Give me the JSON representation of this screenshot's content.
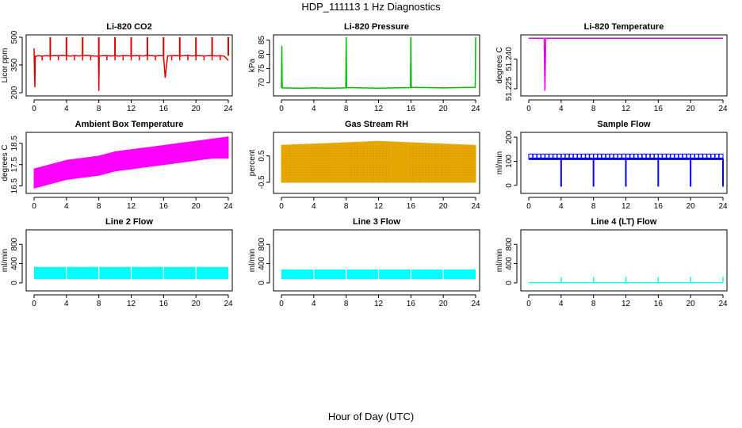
{
  "figure": {
    "title": "HDP_111113  1 Hz Diagnostics",
    "xlabel": "Hour of Day (UTC)"
  },
  "chart_data": [
    {
      "type": "line",
      "title": "Li-820 CO2",
      "ylabel": "Licor ppm",
      "color": "#dd0000",
      "xticks": [
        "0",
        "4",
        "8",
        "12",
        "16",
        "20",
        "24"
      ],
      "yticks": [
        "200",
        "350",
        "500"
      ],
      "xlim": [
        0,
        24
      ],
      "ylim": [
        200,
        500
      ],
      "x": [
        0,
        0.05,
        0.1,
        0.15,
        0.2,
        0.3,
        0.5,
        1.0,
        1.5,
        2.0,
        2.5,
        3.0,
        3.5,
        4.0,
        4.5,
        5.0,
        5.5,
        6.0,
        6.5,
        7.0,
        7.5,
        7.95,
        8.0,
        8.05,
        8.5,
        9.0,
        9.5,
        10.0,
        10.5,
        11.0,
        11.5,
        12.0,
        12.5,
        13.0,
        13.5,
        14.0,
        14.5,
        15.0,
        15.5,
        16.0,
        16.2,
        16.5,
        17.0,
        17.5,
        18.0,
        18.5,
        19.0,
        19.5,
        20.0,
        20.5,
        21.0,
        21.5,
        22.0,
        22.5,
        23.0,
        23.5,
        24.0
      ],
      "values": [
        440,
        300,
        230,
        400,
        395,
        398,
        400,
        398,
        400,
        399,
        401,
        400,
        402,
        400,
        398,
        401,
        399,
        400,
        402,
        400,
        398,
        399,
        210,
        399,
        400,
        401,
        399,
        400,
        398,
        401,
        400,
        399,
        401,
        400,
        399,
        402,
        400,
        399,
        401,
        400,
        280,
        399,
        400,
        401,
        399,
        400,
        402,
        399,
        401,
        400,
        399,
        400,
        401,
        399,
        400,
        398,
        375
      ],
      "spikes": {
        "x": [
          2.0,
          4.0,
          6.0,
          8.0,
          10.0,
          12.0,
          14.0,
          16.0,
          18.0,
          20.0,
          22.0,
          24.0
        ],
        "values": [
          500,
          500,
          500,
          500,
          500,
          500,
          500,
          500,
          500,
          500,
          500,
          500
        ]
      }
    },
    {
      "type": "line",
      "title": "Li-820 Pressure",
      "ylabel": "kPa",
      "color": "#00bb00",
      "xticks": [
        "0",
        "4",
        "8",
        "12",
        "16",
        "20",
        "24"
      ],
      "yticks": [
        "70",
        "75",
        "80",
        "85"
      ],
      "xlim": [
        0,
        24
      ],
      "ylim": [
        66.5,
        86
      ],
      "x": [
        0,
        0.05,
        0.1,
        0.2,
        2,
        4,
        6,
        7.95,
        8.0,
        8.05,
        10,
        12,
        14,
        15.95,
        16.0,
        16.05,
        18,
        20,
        22,
        23.95,
        24.0
      ],
      "values": [
        68.2,
        83,
        68.2,
        68.2,
        68.1,
        68.2,
        68.1,
        68.2,
        86,
        68.3,
        68.2,
        68.1,
        68.2,
        68.3,
        86,
        68.4,
        68.3,
        68.2,
        68.3,
        68.4,
        86
      ]
    },
    {
      "type": "line",
      "title": "Li-820 Temperature",
      "ylabel": "degrees C",
      "color": "#dd00dd",
      "xticks": [
        "0",
        "4",
        "8",
        "12",
        "16",
        "20",
        "24"
      ],
      "yticks": [
        "51.225",
        "51.240"
      ],
      "xlim": [
        0,
        24
      ],
      "ylim": [
        51.223,
        51.251
      ],
      "x": [
        0,
        1.9,
        2.0,
        2.1,
        24
      ],
      "values": [
        51.2505,
        51.2505,
        51.224,
        51.2505,
        51.2505
      ]
    },
    {
      "type": "area",
      "title": "Ambient Box Temperature",
      "ylabel": "degrees C",
      "color": "#ff00ff",
      "xticks": [
        "0",
        "4",
        "8",
        "12",
        "16",
        "20",
        "24"
      ],
      "yticks": [
        "16.5",
        "17.5",
        "18.5"
      ],
      "xlim": [
        0,
        24
      ],
      "ylim": [
        16.3,
        18.9
      ],
      "x": [
        0,
        2,
        4,
        6,
        8,
        10,
        12,
        14,
        16,
        18,
        20,
        22,
        24
      ],
      "low": [
        16.4,
        16.6,
        16.8,
        16.9,
        17.0,
        17.2,
        17.3,
        17.4,
        17.5,
        17.6,
        17.7,
        17.8,
        17.8
      ],
      "high": [
        17.3,
        17.5,
        17.7,
        17.8,
        17.9,
        18.1,
        18.2,
        18.3,
        18.4,
        18.5,
        18.6,
        18.7,
        18.8
      ]
    },
    {
      "type": "area",
      "title": "Gas Stream RH",
      "ylabel": "percent",
      "color": "#e6a800",
      "xticks": [
        "0",
        "4",
        "8",
        "12",
        "16",
        "20",
        "24"
      ],
      "yticks": [
        "-0.5",
        "0.5"
      ],
      "xlim": [
        0,
        24
      ],
      "ylim": [
        -0.8,
        1.3
      ],
      "x": [
        0,
        4,
        8,
        12,
        16,
        20,
        24
      ],
      "low": [
        -0.5,
        -0.5,
        -0.5,
        -0.5,
        -0.5,
        -0.5,
        -0.5
      ],
      "high": [
        0.9,
        0.95,
        1.0,
        1.05,
        1.0,
        0.95,
        0.9
      ]
    },
    {
      "type": "line",
      "title": "Sample Flow",
      "ylabel": "ml/min",
      "color": "#0000ff",
      "xticks": [
        "0",
        "4",
        "8",
        "12",
        "16",
        "20",
        "24"
      ],
      "yticks": [
        "0",
        "100",
        "200"
      ],
      "xlim": [
        0,
        24
      ],
      "ylim": [
        -20,
        210
      ],
      "low": 110,
      "high": 130,
      "dips_x": [
        4,
        8,
        12,
        16,
        20,
        24
      ],
      "dips_value": -5
    },
    {
      "type": "area",
      "title": "Line 2 Flow",
      "ylabel": "ml/min",
      "color": "#00ffff",
      "xticks": [
        "0",
        "4",
        "8",
        "12",
        "16",
        "20",
        "24"
      ],
      "yticks": [
        "0",
        "400",
        "800"
      ],
      "xlim": [
        0,
        24
      ],
      "ylim": [
        -100,
        1050
      ],
      "low": 80,
      "high": 330,
      "gaps_x": [
        4,
        8,
        12,
        16,
        20
      ]
    },
    {
      "type": "area",
      "title": "Line 3 Flow",
      "ylabel": "ml/min",
      "color": "#00ffff",
      "xticks": [
        "0",
        "4",
        "8",
        "12",
        "16",
        "20",
        "24"
      ],
      "yticks": [
        "0",
        "400",
        "800"
      ],
      "xlim": [
        0,
        24
      ],
      "ylim": [
        -100,
        1050
      ],
      "low": 80,
      "high": 280,
      "gaps_x": [
        4,
        8,
        12,
        16,
        20
      ]
    },
    {
      "type": "line",
      "title": "Line 4 (LT) Flow",
      "ylabel": "ml/min",
      "color": "#00ffff",
      "xticks": [
        "0",
        "4",
        "8",
        "12",
        "16",
        "20",
        "24"
      ],
      "yticks": [
        "0",
        "400",
        "800"
      ],
      "xlim": [
        0,
        24
      ],
      "ylim": [
        -100,
        1050
      ],
      "base": 5,
      "spikes_x": [
        4,
        8,
        12,
        16,
        20,
        24
      ],
      "spikes_value": 120
    }
  ]
}
